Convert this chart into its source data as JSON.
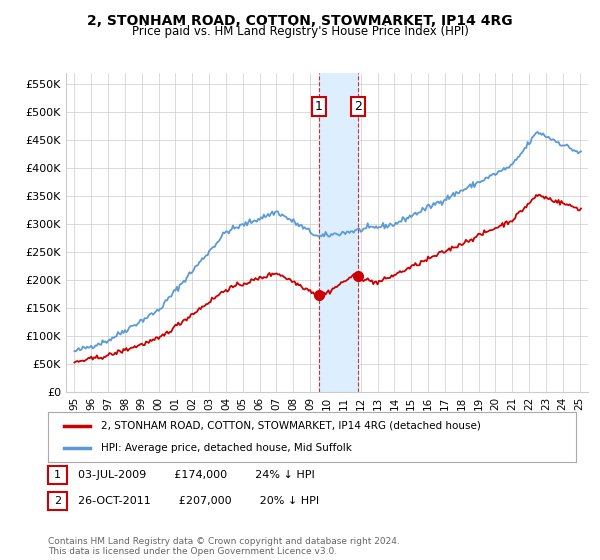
{
  "title": "2, STONHAM ROAD, COTTON, STOWMARKET, IP14 4RG",
  "subtitle": "Price paid vs. HM Land Registry's House Price Index (HPI)",
  "legend_line1": "2, STONHAM ROAD, COTTON, STOWMARKET, IP14 4RG (detached house)",
  "legend_line2": "HPI: Average price, detached house, Mid Suffolk",
  "sale1_label": "1",
  "sale1_date": "03-JUL-2009",
  "sale1_price": "£174,000",
  "sale1_hpi": "24% ↓ HPI",
  "sale1_x": 2009.5,
  "sale1_y": 174000,
  "sale2_label": "2",
  "sale2_date": "26-OCT-2011",
  "sale2_price": "£207,000",
  "sale2_hpi": "20% ↓ HPI",
  "sale2_x": 2011.83,
  "sale2_y": 207000,
  "footnote1": "Contains HM Land Registry data © Crown copyright and database right 2024.",
  "footnote2": "This data is licensed under the Open Government Licence v3.0.",
  "ylim": [
    0,
    570000
  ],
  "xlim_start": 1994.5,
  "xlim_end": 2025.5,
  "hpi_color": "#5b9bd5",
  "price_color": "#cc0000",
  "shade_color": "#ddeeff",
  "grid_color": "#cccccc",
  "bg_color": "#ffffff",
  "yticks": [
    0,
    50000,
    100000,
    150000,
    200000,
    250000,
    300000,
    350000,
    400000,
    450000,
    500000,
    550000
  ],
  "ytick_labels": [
    "£0",
    "£50K",
    "£100K",
    "£150K",
    "£200K",
    "£250K",
    "£300K",
    "£350K",
    "£400K",
    "£450K",
    "£500K",
    "£550K"
  ],
  "xticks": [
    1995,
    1996,
    1997,
    1998,
    1999,
    2000,
    2001,
    2002,
    2003,
    2004,
    2005,
    2006,
    2007,
    2008,
    2009,
    2010,
    2011,
    2012,
    2013,
    2014,
    2015,
    2016,
    2017,
    2018,
    2019,
    2020,
    2021,
    2022,
    2023,
    2024,
    2025
  ]
}
